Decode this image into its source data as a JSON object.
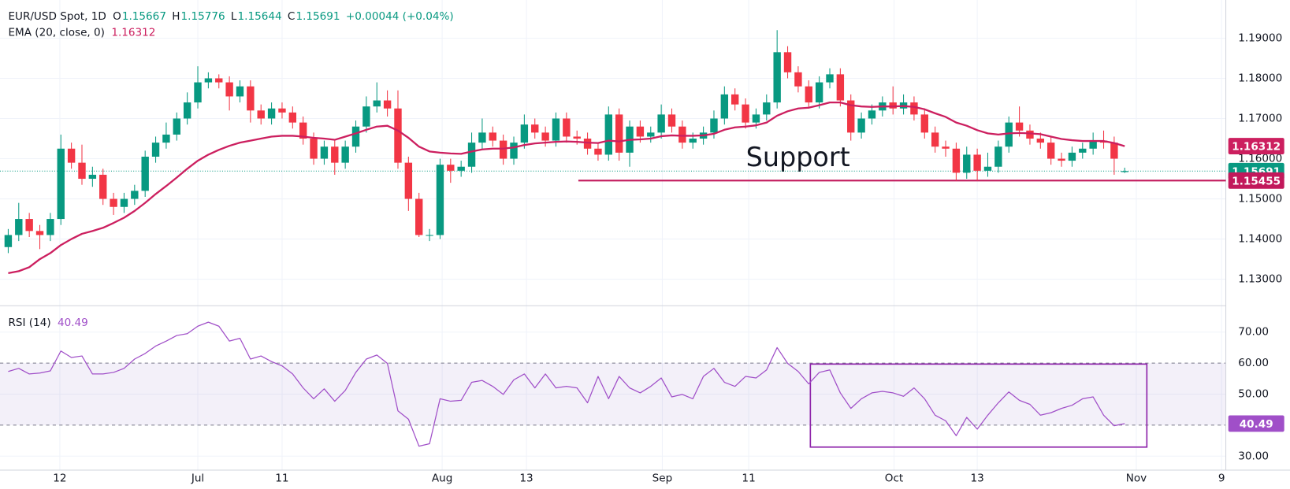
{
  "chart_data": {
    "type": "candlestick",
    "title": "EUR/USD Spot, 1D",
    "ohlc_labels": [
      "O",
      "H",
      "L",
      "C"
    ],
    "change": "+0.00044 (+0.04%)",
    "up_color": "#089981",
    "down_color": "#f23645",
    "grid": true,
    "xlim": [
      -0.78,
      115.6
    ],
    "xticks": [
      {
        "value": 4.9,
        "label": "12"
      },
      {
        "value": 18.0,
        "label": "Jul"
      },
      {
        "value": 26.0,
        "label": "11"
      },
      {
        "value": 41.2,
        "label": "Aug"
      },
      {
        "value": 49.2,
        "label": "13"
      },
      {
        "value": 62.1,
        "label": "Sep"
      },
      {
        "value": 70.3,
        "label": "11"
      },
      {
        "value": 84.1,
        "label": "Oct"
      },
      {
        "value": 92.0,
        "label": "13"
      },
      {
        "value": 107.1,
        "label": "Nov"
      },
      {
        "value": 115.2,
        "label": "9"
      }
    ],
    "ylim": [
      1.1234,
      1.1995
    ],
    "yticks": [
      {
        "value": 1.13,
        "label": "1.13000"
      },
      {
        "value": 1.14,
        "label": "1.14000"
      },
      {
        "value": 1.15,
        "label": "1.15000"
      },
      {
        "value": 1.16,
        "label": "1.16000"
      },
      {
        "value": 1.17,
        "label": "1.17000"
      },
      {
        "value": 1.18,
        "label": "1.18000"
      },
      {
        "value": 1.19,
        "label": "1.19000"
      }
    ],
    "open": [
      1.138,
      1.141,
      1.145,
      1.142,
      1.141,
      1.145,
      1.1625,
      1.159,
      1.155,
      1.156,
      1.15,
      1.148,
      1.15,
      1.152,
      1.1605,
      1.164,
      1.166,
      1.17,
      1.174,
      1.179,
      1.18,
      1.179,
      1.1755,
      1.178,
      1.172,
      1.17,
      1.1725,
      1.1715,
      1.169,
      1.165,
      1.16,
      1.163,
      1.159,
      1.163,
      1.168,
      1.173,
      1.1745,
      1.1725,
      1.159,
      1.15,
      1.141,
      1.141,
      1.1585,
      1.157,
      1.158,
      1.164,
      1.1665,
      1.1645,
      1.16,
      1.164,
      1.1685,
      1.1665,
      1.1645,
      1.17,
      1.1655,
      1.165,
      1.1625,
      1.161,
      1.171,
      1.1615,
      1.168,
      1.1655,
      1.1665,
      1.171,
      1.168,
      1.164,
      1.165,
      1.1665,
      1.17,
      1.176,
      1.1735,
      1.169,
      1.171,
      1.174,
      1.1865,
      1.1815,
      1.178,
      1.174,
      1.179,
      1.181,
      1.1745,
      1.1665,
      1.17,
      1.172,
      1.174,
      1.1725,
      1.174,
      1.171,
      1.1665,
      1.163,
      1.1625,
      1.1565,
      1.161,
      1.157,
      1.158,
      1.163,
      1.169,
      1.167,
      1.165,
      1.164,
      1.16,
      1.1595,
      1.1615,
      1.1625,
      1.1645,
      1.164,
      1.15667
    ],
    "high": [
      1.1425,
      1.149,
      1.1465,
      1.1435,
      1.1465,
      1.166,
      1.164,
      1.1635,
      1.158,
      1.1575,
      1.1515,
      1.1515,
      1.1535,
      1.162,
      1.1655,
      1.169,
      1.1715,
      1.1765,
      1.183,
      1.1815,
      1.181,
      1.1805,
      1.1795,
      1.1795,
      1.1735,
      1.174,
      1.174,
      1.173,
      1.1705,
      1.1665,
      1.1645,
      1.1645,
      1.1645,
      1.1695,
      1.1755,
      1.179,
      1.177,
      1.177,
      1.1605,
      1.1515,
      1.1425,
      1.16,
      1.16,
      1.1595,
      1.1665,
      1.17,
      1.168,
      1.166,
      1.1655,
      1.171,
      1.17,
      1.168,
      1.1715,
      1.1715,
      1.167,
      1.1665,
      1.164,
      1.173,
      1.1725,
      1.1695,
      1.1695,
      1.168,
      1.1735,
      1.1725,
      1.1695,
      1.1665,
      1.168,
      1.172,
      1.178,
      1.1775,
      1.175,
      1.1725,
      1.176,
      1.192,
      1.188,
      1.183,
      1.1795,
      1.1805,
      1.1825,
      1.1825,
      1.176,
      1.1715,
      1.1735,
      1.1755,
      1.178,
      1.176,
      1.1755,
      1.1725,
      1.168,
      1.1645,
      1.164,
      1.163,
      1.1625,
      1.1615,
      1.1645,
      1.1705,
      1.173,
      1.1685,
      1.1665,
      1.1655,
      1.1615,
      1.163,
      1.164,
      1.1665,
      1.167,
      1.1655,
      1.15776
    ],
    "low": [
      1.1365,
      1.1395,
      1.1405,
      1.1375,
      1.1395,
      1.1435,
      1.1575,
      1.1535,
      1.153,
      1.1485,
      1.146,
      1.1465,
      1.1485,
      1.1505,
      1.159,
      1.1625,
      1.1645,
      1.1685,
      1.1725,
      1.1775,
      1.1775,
      1.172,
      1.174,
      1.169,
      1.1685,
      1.1685,
      1.17,
      1.1675,
      1.1635,
      1.1585,
      1.1585,
      1.156,
      1.1575,
      1.1615,
      1.1665,
      1.1715,
      1.1705,
      1.1575,
      1.147,
      1.1405,
      1.1395,
      1.14,
      1.154,
      1.1555,
      1.1565,
      1.1625,
      1.163,
      1.1585,
      1.1585,
      1.1625,
      1.165,
      1.163,
      1.163,
      1.164,
      1.1635,
      1.161,
      1.1595,
      1.1595,
      1.1595,
      1.158,
      1.164,
      1.164,
      1.165,
      1.1665,
      1.1625,
      1.1625,
      1.1635,
      1.165,
      1.1685,
      1.172,
      1.1675,
      1.1675,
      1.1695,
      1.1725,
      1.18,
      1.1765,
      1.1725,
      1.1725,
      1.1775,
      1.173,
      1.1645,
      1.165,
      1.1685,
      1.1705,
      1.171,
      1.171,
      1.1695,
      1.165,
      1.1615,
      1.1605,
      1.1545,
      1.155,
      1.1545,
      1.1555,
      1.1565,
      1.1615,
      1.1655,
      1.1635,
      1.1625,
      1.1585,
      1.158,
      1.158,
      1.16,
      1.161,
      1.1625,
      1.156,
      1.15644
    ],
    "close": [
      1.141,
      1.145,
      1.142,
      1.141,
      1.145,
      1.1625,
      1.159,
      1.155,
      1.156,
      1.15,
      1.148,
      1.15,
      1.152,
      1.1605,
      1.164,
      1.166,
      1.17,
      1.174,
      1.179,
      1.18,
      1.179,
      1.1755,
      1.178,
      1.172,
      1.17,
      1.1725,
      1.1715,
      1.169,
      1.165,
      1.16,
      1.163,
      1.159,
      1.163,
      1.168,
      1.173,
      1.1745,
      1.1725,
      1.159,
      1.15,
      1.141,
      1.141,
      1.1585,
      1.157,
      1.158,
      1.164,
      1.1665,
      1.1645,
      1.16,
      1.164,
      1.1685,
      1.1665,
      1.1645,
      1.17,
      1.1655,
      1.165,
      1.1625,
      1.161,
      1.171,
      1.1615,
      1.168,
      1.1655,
      1.1665,
      1.171,
      1.168,
      1.164,
      1.165,
      1.1665,
      1.17,
      1.176,
      1.1735,
      1.169,
      1.171,
      1.174,
      1.1865,
      1.1815,
      1.178,
      1.174,
      1.179,
      1.181,
      1.1745,
      1.1665,
      1.17,
      1.172,
      1.174,
      1.1725,
      1.174,
      1.171,
      1.1665,
      1.163,
      1.1625,
      1.1565,
      1.161,
      1.157,
      1.158,
      1.163,
      1.169,
      1.167,
      1.165,
      1.164,
      1.16,
      1.1595,
      1.1615,
      1.1625,
      1.1645,
      1.164,
      1.16,
      1.15691
    ],
    "ema": {
      "name": "EMA (20, close, 0)",
      "color": "#cc1f5f",
      "values": [
        1.1315,
        1.132,
        1.133,
        1.135,
        1.1365,
        1.1385,
        1.14,
        1.1413,
        1.142,
        1.1428,
        1.144,
        1.1453,
        1.147,
        1.149,
        1.1512,
        1.1532,
        1.1553,
        1.1575,
        1.1595,
        1.161,
        1.1622,
        1.1632,
        1.164,
        1.1645,
        1.165,
        1.1655,
        1.1657,
        1.1657,
        1.1655,
        1.1652,
        1.165,
        1.1647,
        1.1655,
        1.1663,
        1.1672,
        1.168,
        1.1682,
        1.167,
        1.1652,
        1.163,
        1.1618,
        1.1615,
        1.1613,
        1.1612,
        1.1618,
        1.1623,
        1.1625,
        1.1625,
        1.1628,
        1.1634,
        1.1638,
        1.164,
        1.1642,
        1.1643,
        1.1642,
        1.164,
        1.1639,
        1.1645,
        1.1643,
        1.1647,
        1.1648,
        1.165,
        1.1656,
        1.1658,
        1.1657,
        1.1657,
        1.1658,
        1.1662,
        1.1672,
        1.1678,
        1.168,
        1.1683,
        1.169,
        1.1707,
        1.1718,
        1.1725,
        1.1727,
        1.1733,
        1.174,
        1.174,
        1.1733,
        1.173,
        1.1729,
        1.173,
        1.173,
        1.1731,
        1.1729,
        1.1723,
        1.1713,
        1.1704,
        1.169,
        1.1682,
        1.1671,
        1.1663,
        1.166,
        1.1663,
        1.1664,
        1.1663,
        1.1661,
        1.1655,
        1.1649,
        1.1646,
        1.1644,
        1.1644,
        1.1644,
        1.1639,
        1.16312
      ]
    },
    "support": {
      "label": "Support",
      "value": 1.15455,
      "color": "#c2185b"
    },
    "rsi": {
      "name": "RSI (14)",
      "color": "#a04fc8",
      "ylim": [
        25.5,
        78.5
      ],
      "yticks": [
        {
          "value": 30,
          "label": "30.00"
        },
        {
          "value": 40,
          "label": "40.00"
        },
        {
          "value": 50,
          "label": "50.00"
        },
        {
          "value": 60,
          "label": "60.00"
        },
        {
          "value": 70,
          "label": "70.00"
        }
      ],
      "band": [
        40,
        60
      ],
      "values": [
        57.3,
        58.3,
        56.5,
        56.8,
        57.5,
        63.9,
        61.8,
        62.3,
        56.5,
        56.5,
        57.0,
        58.3,
        61.3,
        63.1,
        65.5,
        67.1,
        68.9,
        69.5,
        71.9,
        73.2,
        71.9,
        67.1,
        68.0,
        61.3,
        62.3,
        60.5,
        59.1,
        56.5,
        52.0,
        48.5,
        51.7,
        47.7,
        51.2,
        57.0,
        61.3,
        62.6,
        59.9,
        44.6,
        41.9,
        33.2,
        34.0,
        48.5,
        47.7,
        48.0,
        53.8,
        54.4,
        52.5,
        49.9,
        54.6,
        56.5,
        52.0,
        56.5,
        52.0,
        52.5,
        52.0,
        47.2,
        55.7,
        48.5,
        55.7,
        52.0,
        50.4,
        52.5,
        55.2,
        49.1,
        49.9,
        48.5,
        55.7,
        58.3,
        53.8,
        52.5,
        55.7,
        55.2,
        57.8,
        65.0,
        59.9,
        57.3,
        53.3,
        57.0,
        57.8,
        50.4,
        45.4,
        48.5,
        50.4,
        50.9,
        50.4,
        49.3,
        52.0,
        48.5,
        43.2,
        41.4,
        36.6,
        42.5,
        38.7,
        43.2,
        47.2,
        50.7,
        48.0,
        46.7,
        43.2,
        44.0,
        45.4,
        46.4,
        48.5,
        49.1,
        43.2,
        39.8,
        40.49
      ]
    }
  }
}
